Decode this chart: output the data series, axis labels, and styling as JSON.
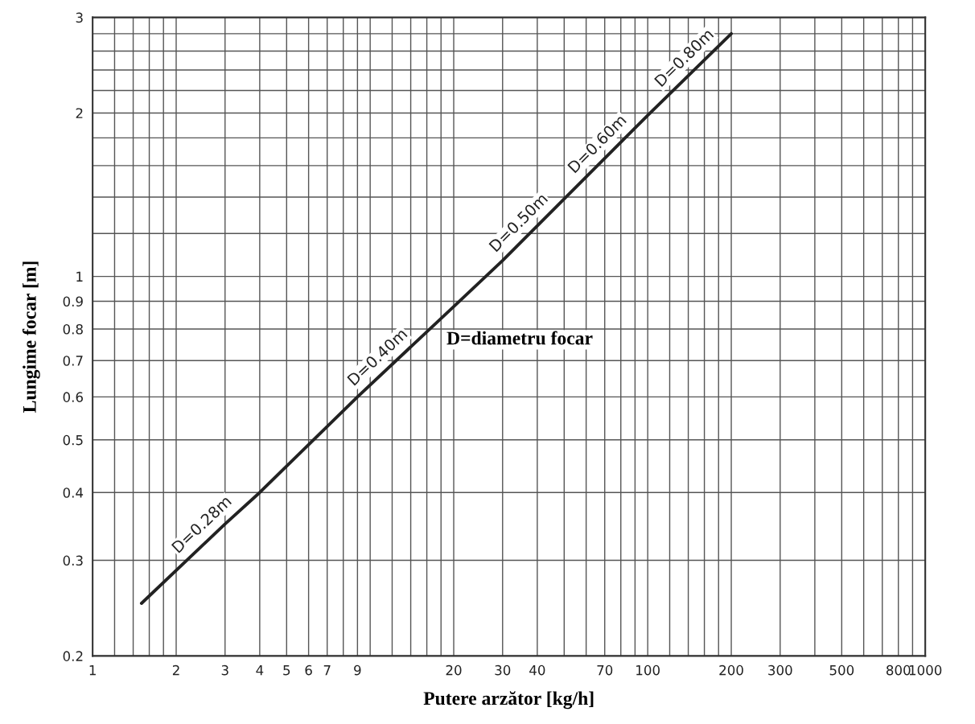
{
  "chart_data": {
    "type": "line",
    "xlabel": "Putere arzător [kg/h]",
    "ylabel": "Lungime focar [m]",
    "x": [
      1.5,
      3,
      4,
      9,
      20,
      30,
      100,
      200
    ],
    "series": [
      {
        "color": "#222222",
        "values": [
          0.25,
          0.35,
          0.4,
          0.6,
          0.88,
          1.07,
          1.98,
          2.8
        ]
      }
    ],
    "log": "xy",
    "grid": true,
    "marker": "none",
    "line_style": "solid",
    "xlim": [
      1,
      1000
    ],
    "ylim": [
      0.2,
      3
    ],
    "xticks": [
      1,
      {
        "value": 1.2,
        "label": null
      },
      {
        "value": 1.4,
        "label": null
      },
      {
        "value": 1.6,
        "label": null
      },
      {
        "value": 1.8,
        "label": null
      },
      2,
      3,
      4,
      5,
      6,
      7,
      {
        "value": 8,
        "label": null
      },
      9,
      {
        "value": 10,
        "label": null
      },
      {
        "value": 12,
        "label": null
      },
      {
        "value": 14,
        "label": null
      },
      {
        "value": 16,
        "label": null
      },
      {
        "value": 18,
        "label": null
      },
      20,
      30,
      40,
      {
        "value": 50,
        "label": null
      },
      {
        "value": 60,
        "label": null
      },
      70,
      {
        "value": 80,
        "label": null
      },
      {
        "value": 90,
        "label": null
      },
      100,
      {
        "value": 120,
        "label": null
      },
      {
        "value": 140,
        "label": null
      },
      {
        "value": 160,
        "label": null
      },
      {
        "value": 180,
        "label": null
      },
      200,
      300,
      {
        "value": 400,
        "label": null
      },
      500,
      {
        "value": 600,
        "label": null
      },
      {
        "value": 700,
        "label": null
      },
      800,
      {
        "value": 900,
        "label": null
      },
      1000
    ],
    "yticks": [
      0.2,
      0.3,
      0.4,
      0.5,
      0.6,
      0.7,
      0.8,
      0.9,
      1,
      {
        "value": 1.2,
        "label": null
      },
      {
        "value": 1.4,
        "label": null
      },
      {
        "value": 1.6,
        "label": null
      },
      {
        "value": 1.8,
        "label": null
      },
      2,
      {
        "value": 2.2,
        "label": null
      },
      {
        "value": 2.4,
        "label": null
      },
      {
        "value": 2.6,
        "label": null
      },
      {
        "value": 2.8,
        "label": null
      },
      3
    ],
    "annotations": [
      {
        "text": "D=0.28m",
        "x": 2.7,
        "y": 0.333
      },
      {
        "text": "D=0.40m",
        "x": 11.6,
        "y": 0.677
      },
      {
        "text": "D=0.50m",
        "x": 37.5,
        "y": 1.199
      },
      {
        "text": "D=0.60m",
        "x": 72,
        "y": 1.674
      },
      {
        "text": "D=0.80m",
        "x": 148,
        "y": 2.41
      },
      "D=diametru focar"
    ]
  }
}
